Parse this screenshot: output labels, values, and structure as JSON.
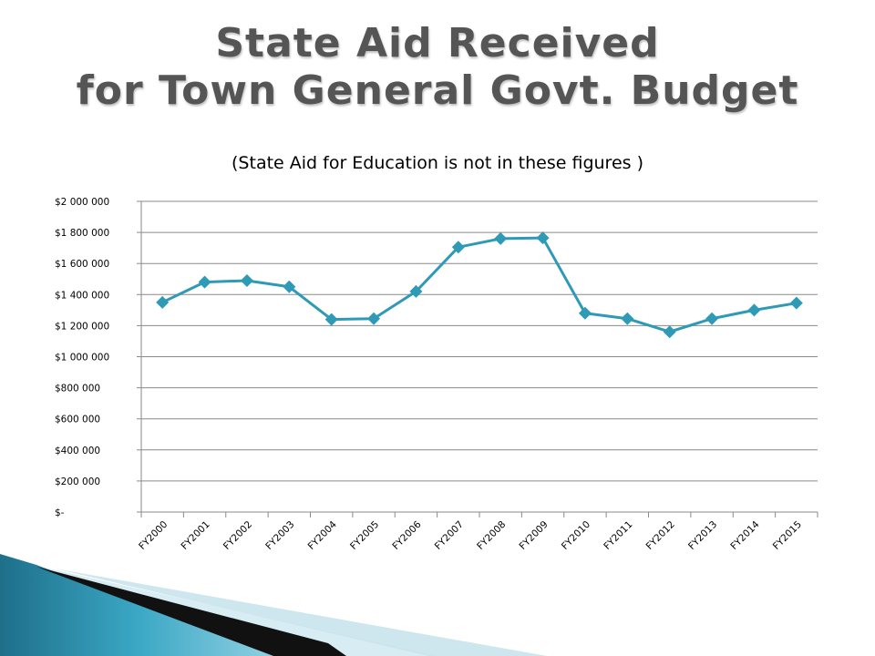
{
  "slide": {
    "title_line1": "State Aid Received",
    "title_line2": "for Town General Govt. Budget"
  },
  "chart_data": {
    "type": "line",
    "title": "(State Aid for Education is not in these figures )",
    "categories": [
      "FY2000",
      "FY2001",
      "FY2002",
      "FY2003",
      "FY2004",
      "FY2005",
      "FY2006",
      "FY2007",
      "FY2008",
      "FY2009",
      "FY2010",
      "FY2011",
      "FY2012",
      "FY2013",
      "FY2014",
      "FY2015"
    ],
    "values": [
      1350000,
      1480000,
      1490000,
      1450000,
      1240000,
      1245000,
      1420000,
      1705000,
      1760000,
      1765000,
      1280000,
      1245000,
      1160000,
      1245000,
      1300000,
      1345000
    ],
    "ylim": [
      0,
      2000000
    ],
    "y_ticks": [
      0,
      200000,
      400000,
      600000,
      800000,
      1000000,
      1200000,
      1400000,
      1600000,
      1800000,
      2000000
    ],
    "y_tick_labels": [
      "$-",
      "$200 000",
      "$400 000",
      "$600 000",
      "$800 000",
      "$1 000 000",
      "$1 200 000",
      "$1 400 000",
      "$1 600 000",
      "$1 800 000",
      "$2 000 000"
    ],
    "grid": true,
    "legend": "none",
    "series_color": "#2e9ab6"
  }
}
